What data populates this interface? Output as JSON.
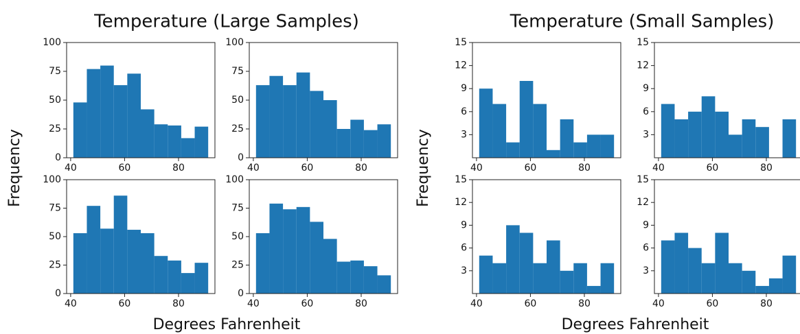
{
  "figures": [
    {
      "title": "Temperature (Large Samples)",
      "xlabel": "Degrees Fahrenheit",
      "ylabel": "Frequency"
    },
    {
      "title": "Temperature (Small Samples)",
      "xlabel": "Degrees Fahrenheit",
      "ylabel": "Frequency"
    }
  ],
  "chart_data": [
    {
      "type": "histogram",
      "bins": [
        41,
        46,
        51,
        56,
        61,
        66,
        71,
        76,
        81,
        86,
        91
      ],
      "values": [
        48,
        77,
        80,
        63,
        73,
        42,
        29,
        28,
        17,
        27
      ],
      "color": "#1f77b4",
      "xlim": [
        38.5,
        93.5
      ],
      "ylim": [
        0,
        100
      ],
      "xticks": [
        40,
        60,
        80
      ],
      "yticks": [
        0,
        25,
        50,
        75,
        100
      ]
    },
    {
      "type": "histogram",
      "bins": [
        41,
        46,
        51,
        56,
        61,
        66,
        71,
        76,
        81,
        86,
        91
      ],
      "values": [
        63,
        71,
        63,
        74,
        58,
        50,
        25,
        33,
        24,
        29
      ],
      "color": "#1f77b4",
      "xlim": [
        38.5,
        93.5
      ],
      "ylim": [
        0,
        100
      ],
      "xticks": [
        40,
        60,
        80
      ],
      "yticks": [
        0,
        25,
        50,
        75,
        100
      ]
    },
    {
      "type": "histogram",
      "bins": [
        41,
        46,
        51,
        56,
        61,
        66,
        71,
        76,
        81,
        86,
        91
      ],
      "values": [
        53,
        77,
        57,
        86,
        56,
        53,
        33,
        29,
        18,
        27
      ],
      "color": "#1f77b4",
      "xlim": [
        38.5,
        93.5
      ],
      "ylim": [
        0,
        100
      ],
      "xticks": [
        40,
        60,
        80
      ],
      "yticks": [
        0,
        25,
        50,
        75,
        100
      ]
    },
    {
      "type": "histogram",
      "bins": [
        41,
        46,
        51,
        56,
        61,
        66,
        71,
        76,
        81,
        86,
        91
      ],
      "values": [
        53,
        79,
        74,
        76,
        63,
        48,
        28,
        29,
        24,
        16
      ],
      "color": "#1f77b4",
      "xlim": [
        38.5,
        93.5
      ],
      "ylim": [
        0,
        100
      ],
      "xticks": [
        40,
        60,
        80
      ],
      "yticks": [
        0,
        25,
        50,
        75,
        100
      ]
    },
    {
      "type": "histogram",
      "bins": [
        41,
        46,
        51,
        56,
        61,
        66,
        71,
        76,
        81,
        86,
        91
      ],
      "values": [
        9,
        7,
        2,
        10,
        7,
        1,
        5,
        2,
        3,
        3
      ],
      "color": "#1f77b4",
      "xlim": [
        38.5,
        93.5
      ],
      "ylim": [
        0,
        15
      ],
      "xticks": [
        40,
        60,
        80
      ],
      "yticks": [
        3,
        6,
        9,
        12,
        15
      ]
    },
    {
      "type": "histogram",
      "bins": [
        41,
        46,
        51,
        56,
        61,
        66,
        71,
        76,
        81,
        86,
        91
      ],
      "values": [
        7,
        5,
        6,
        8,
        6,
        3,
        5,
        4,
        0,
        5
      ],
      "color": "#1f77b4",
      "xlim": [
        38.5,
        93.5
      ],
      "ylim": [
        0,
        15
      ],
      "xticks": [
        40,
        60,
        80
      ],
      "yticks": [
        3,
        6,
        9,
        12,
        15
      ]
    },
    {
      "type": "histogram",
      "bins": [
        41,
        46,
        51,
        56,
        61,
        66,
        71,
        76,
        81,
        86,
        91
      ],
      "values": [
        5,
        4,
        9,
        8,
        4,
        7,
        3,
        4,
        1,
        4
      ],
      "color": "#1f77b4",
      "xlim": [
        38.5,
        93.5
      ],
      "ylim": [
        0,
        15
      ],
      "xticks": [
        40,
        60,
        80
      ],
      "yticks": [
        3,
        6,
        9,
        12,
        15
      ]
    },
    {
      "type": "histogram",
      "bins": [
        41,
        46,
        51,
        56,
        61,
        66,
        71,
        76,
        81,
        86,
        91
      ],
      "values": [
        7,
        8,
        6,
        4,
        8,
        4,
        3,
        1,
        2,
        5
      ],
      "color": "#1f77b4",
      "xlim": [
        38.5,
        93.5
      ],
      "ylim": [
        0,
        15
      ],
      "xticks": [
        40,
        60,
        80
      ],
      "yticks": [
        3,
        6,
        9,
        12,
        15
      ]
    }
  ]
}
